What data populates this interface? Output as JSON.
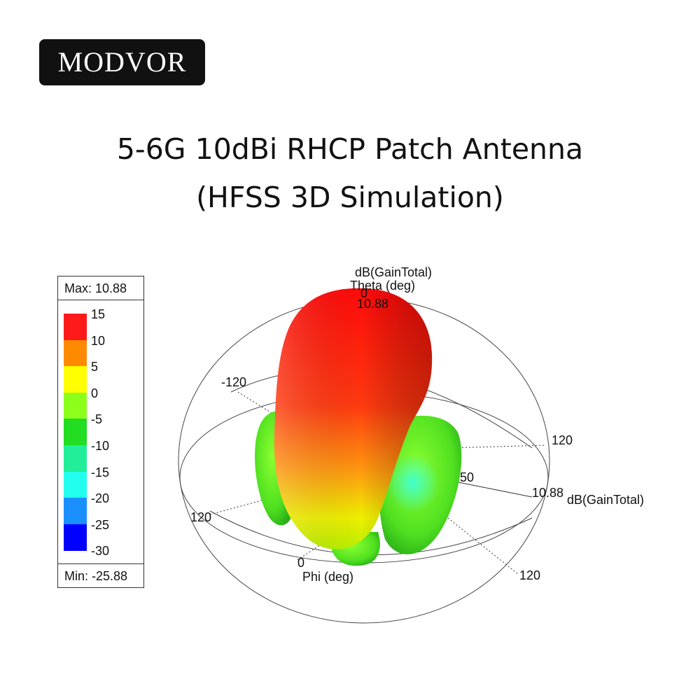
{
  "brand": {
    "name": "MODVOR"
  },
  "heading": {
    "line1": "5-6G 10dBi RHCP Patch Antenna",
    "line2": "(HFSS 3D Simulation)"
  },
  "legend": {
    "max_label": "Max: 10.88",
    "min_label": "Min: -25.88",
    "ticks": [
      "15",
      "10",
      "5",
      "0",
      "-5",
      "-10",
      "-15",
      "-20",
      "-25",
      "-30"
    ],
    "colors": [
      "#ff1a1a",
      "#ff8a00",
      "#ffff00",
      "#8cff1a",
      "#22dd22",
      "#22ee99",
      "#22ffee",
      "#1a90ff",
      "#0000ff"
    ]
  },
  "plot": {
    "top_label": "dB(GainTotal)",
    "theta_label": "Theta (deg)",
    "theta_zero": "0",
    "peak_label": "10.88",
    "right_peak": "10.88",
    "right_axis_label": "dB(GainTotal)",
    "left_tick": "-120",
    "right_tick_top": "120",
    "mid_tick": "50",
    "left_tick_bottom": "120",
    "right_tick_bottom": "120",
    "phi_zero": "0",
    "phi_label": "Phi (deg)"
  }
}
